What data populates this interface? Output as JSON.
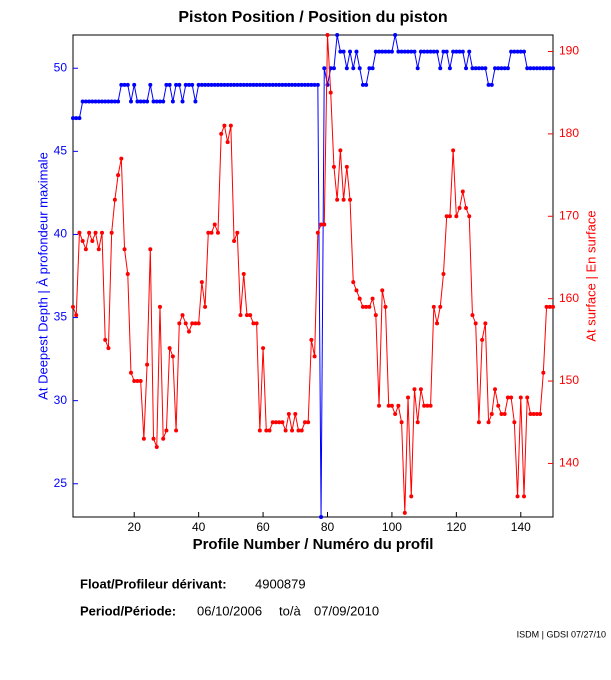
{
  "chart_data": {
    "type": "line",
    "title": "Piston Position / Position du piston",
    "x_label": "Profile Number / Numéro du profil",
    "y_label": "At Deepest Depth | À profondeur maximale",
    "y2_label": "At surface | En surface",
    "x": [
      1,
      2,
      3,
      4,
      5,
      6,
      7,
      8,
      9,
      10,
      11,
      12,
      13,
      14,
      15,
      16,
      17,
      18,
      19,
      20,
      21,
      22,
      23,
      24,
      25,
      26,
      27,
      28,
      29,
      30,
      31,
      32,
      33,
      34,
      35,
      36,
      37,
      38,
      39,
      40,
      41,
      42,
      43,
      44,
      45,
      46,
      47,
      48,
      49,
      50,
      51,
      52,
      53,
      54,
      55,
      56,
      57,
      58,
      59,
      60,
      61,
      62,
      63,
      64,
      65,
      66,
      67,
      68,
      69,
      70,
      71,
      72,
      73,
      74,
      75,
      76,
      77,
      78,
      79,
      80,
      81,
      82,
      83,
      84,
      85,
      86,
      87,
      88,
      89,
      90,
      91,
      92,
      93,
      94,
      95,
      96,
      97,
      98,
      99,
      100,
      101,
      102,
      103,
      104,
      105,
      106,
      107,
      108,
      109,
      110,
      111,
      112,
      113,
      114,
      115,
      116,
      117,
      118,
      119,
      120,
      121,
      122,
      123,
      124,
      125,
      126,
      127,
      128,
      129,
      130,
      131,
      132,
      133,
      134,
      135,
      136,
      137,
      138,
      139,
      140,
      141,
      142,
      143,
      144,
      145,
      146,
      147,
      148,
      149,
      150
    ],
    "series": [
      {
        "name": "At Deepest Depth",
        "color": "#0000ff",
        "axis": "y",
        "values": [
          47,
          47,
          47,
          48,
          48,
          48,
          48,
          48,
          48,
          48,
          48,
          48,
          48,
          48,
          48,
          49,
          49,
          49,
          48,
          49,
          48,
          48,
          48,
          48,
          49,
          48,
          48,
          48,
          48,
          49,
          49,
          48,
          49,
          49,
          48,
          49,
          49,
          49,
          48,
          49,
          49,
          49,
          49,
          49,
          49,
          49,
          49,
          49,
          49,
          49,
          49,
          49,
          49,
          49,
          49,
          49,
          49,
          49,
          49,
          49,
          49,
          49,
          49,
          49,
          49,
          49,
          49,
          49,
          49,
          49,
          49,
          49,
          49,
          49,
          49,
          49,
          49,
          23,
          50,
          49,
          50,
          50,
          52,
          51,
          51,
          50,
          51,
          50,
          51,
          50,
          49,
          49,
          50,
          50,
          51,
          51,
          51,
          51,
          51,
          51,
          52,
          51,
          51,
          51,
          51,
          51,
          51,
          50,
          51,
          51,
          51,
          51,
          51,
          51,
          50,
          51,
          51,
          50,
          51,
          51,
          51,
          51,
          50,
          51,
          50,
          50,
          50,
          50,
          50,
          49,
          49,
          50,
          50,
          50,
          50,
          50,
          51,
          51,
          51,
          51,
          51,
          50,
          50,
          50,
          50,
          50,
          50,
          50,
          50,
          50
        ]
      },
      {
        "name": "At surface",
        "color": "#ff0000",
        "axis": "y2",
        "values": [
          159,
          158,
          168,
          167,
          166,
          168,
          167,
          168,
          166,
          168,
          155,
          154,
          168,
          172,
          175,
          177,
          166,
          163,
          151,
          150,
          150,
          150,
          143,
          152,
          166,
          143,
          142,
          159,
          143,
          144,
          154,
          153,
          144,
          157,
          158,
          157,
          156,
          157,
          157,
          157,
          162,
          159,
          168,
          168,
          169,
          168,
          180,
          181,
          179,
          181,
          167,
          168,
          158,
          163,
          158,
          158,
          157,
          157,
          144,
          154,
          144,
          144,
          145,
          145,
          145,
          145,
          144,
          146,
          144,
          146,
          144,
          144,
          145,
          145,
          155,
          153,
          168,
          169,
          169,
          192,
          185,
          176,
          172,
          178,
          172,
          176,
          172,
          162,
          161,
          160,
          159,
          159,
          159,
          160,
          158,
          147,
          161,
          159,
          147,
          147,
          146,
          147,
          145,
          134,
          148,
          136,
          149,
          145,
          149,
          147,
          147,
          147,
          159,
          157,
          159,
          163,
          170,
          170,
          178,
          170,
          171,
          173,
          171,
          170,
          158,
          157,
          145,
          155,
          157,
          145,
          146,
          149,
          147,
          146,
          146,
          148,
          148,
          145,
          136,
          148,
          136,
          148,
          146,
          146,
          146,
          146,
          151,
          159,
          159,
          159
        ]
      }
    ],
    "xlim": [
      1,
      150
    ],
    "xticks": [
      20,
      40,
      60,
      80,
      100,
      120,
      140
    ],
    "ylim": [
      23,
      52
    ],
    "yticks": [
      25,
      30,
      35,
      40,
      45,
      50
    ],
    "y2lim": [
      133.5,
      192
    ],
    "y2ticks": [
      140,
      150,
      160,
      170,
      180,
      190
    ],
    "grid": false
  },
  "footer": {
    "float_label": "Float/Profileur dérivant:",
    "float_id": "4900879",
    "period_label": "Period/Période:",
    "start_date": "06/10/2006",
    "to": "to/à",
    "end_date": "07/09/2010",
    "credit": "ISDM | GDSI 07/27/10"
  }
}
